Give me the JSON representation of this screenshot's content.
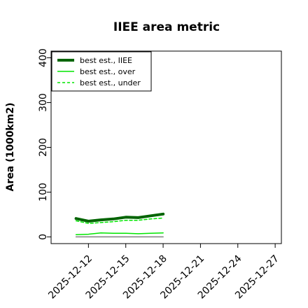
{
  "chart_data": {
    "type": "line",
    "title": "IIEE area metric",
    "ylabel": "Area (1000km2)",
    "xlabel": "",
    "ylim": [
      -15,
      415
    ],
    "yticks": [
      0,
      100,
      200,
      300,
      400
    ],
    "xticks": [
      "2025-12-12",
      "2025-12-15",
      "2025-12-18",
      "2025-12-21",
      "2025-12-24",
      "2025-12-27"
    ],
    "xlim_days": [
      9,
      27.5
    ],
    "x": [
      "2025-12-11",
      "2025-12-12",
      "2025-12-13",
      "2025-12-14",
      "2025-12-15",
      "2025-12-16",
      "2025-12-17",
      "2025-12-18"
    ],
    "legend_position": "top-left",
    "grid": false,
    "series": [
      {
        "name": "best est., IIEE",
        "color": "#006400",
        "style": "solid",
        "width": 4,
        "values": [
          41,
          35,
          38,
          40,
          44,
          43,
          47,
          51
        ]
      },
      {
        "name": "best est., over",
        "color": "#00e600",
        "style": "solid",
        "width": 1.5,
        "values": [
          5,
          6,
          9,
          8,
          8,
          7,
          8,
          9
        ]
      },
      {
        "name": "best est., under",
        "color": "#00e600",
        "style": "dashed",
        "width": 1.5,
        "values": [
          36,
          30,
          32,
          34,
          37,
          37,
          40,
          42
        ]
      },
      {
        "name": "",
        "color": "#808080",
        "style": "solid",
        "width": 1.5,
        "values": [
          0,
          0,
          0,
          0,
          0,
          0,
          0,
          0
        ]
      }
    ]
  }
}
